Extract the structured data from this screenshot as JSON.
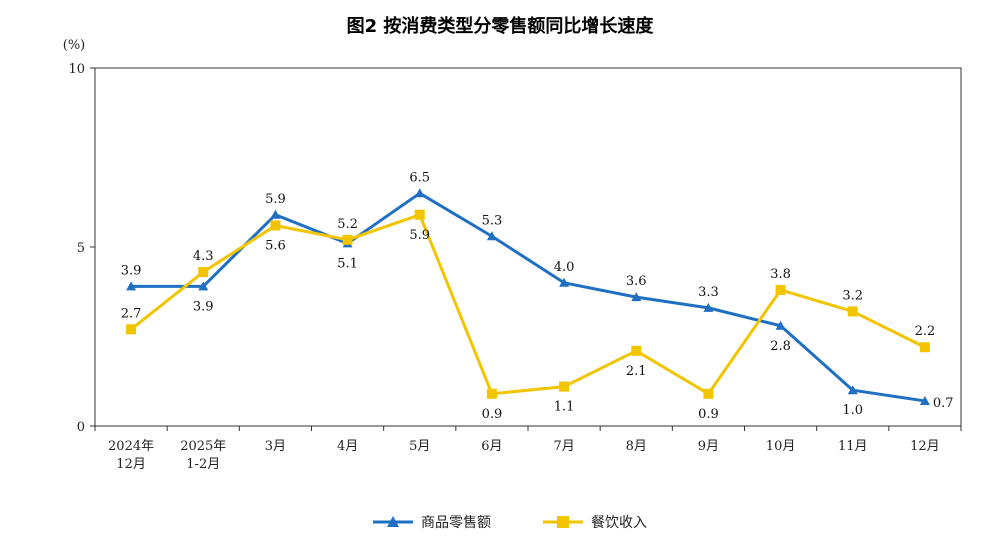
{
  "chart_data": {
    "type": "line",
    "title": "图2 按消费类型分零售额同比增长速度",
    "ylabel": "(%)",
    "ylim": [
      0,
      10
    ],
    "yticks": [
      0,
      5,
      10
    ],
    "grid": false,
    "legend": "bottom",
    "categories": [
      [
        "2024年",
        "12月"
      ],
      [
        "2025年",
        "1-2月"
      ],
      [
        "3月"
      ],
      [
        "4月"
      ],
      [
        "5月"
      ],
      [
        "6月"
      ],
      [
        "7月"
      ],
      [
        "8月"
      ],
      [
        "9月"
      ],
      [
        "10月"
      ],
      [
        "11月"
      ],
      [
        "12月"
      ]
    ],
    "series": [
      {
        "name": "商品零售额",
        "color": "#1f6fc2",
        "marker": "triangle",
        "values": [
          3.9,
          3.9,
          5.9,
          5.1,
          6.5,
          5.3,
          4.0,
          3.6,
          3.3,
          2.8,
          1.0,
          0.7
        ],
        "labels": [
          "3.9",
          "3.9",
          "5.9",
          "5.1",
          "6.5",
          "5.3",
          "4.0",
          "3.6",
          "3.3",
          "2.8",
          "1.0",
          "0.7"
        ]
      },
      {
        "name": "餐饮收入",
        "color": "#f2c500",
        "marker": "square",
        "values": [
          2.7,
          4.3,
          5.6,
          5.2,
          5.9,
          0.9,
          1.1,
          2.1,
          0.9,
          3.8,
          3.2,
          2.2
        ],
        "labels": [
          "2.7",
          "4.3",
          "5.6",
          "5.2",
          "5.9",
          "0.9",
          "1.1",
          "2.1",
          "0.9",
          "3.8",
          "3.2",
          "2.2"
        ]
      }
    ]
  }
}
